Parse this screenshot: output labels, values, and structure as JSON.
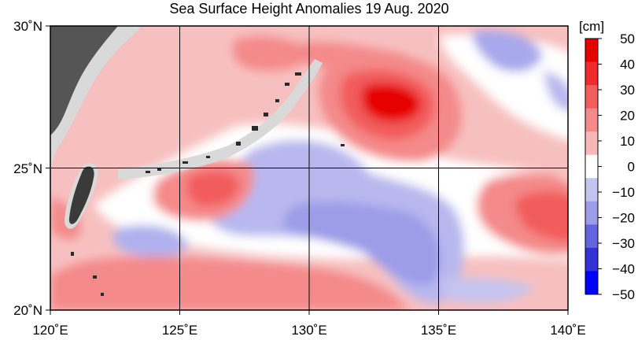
{
  "title": "Sea Surface Height Anomalies  19 Aug. 2020",
  "map": {
    "lon_range": [
      120,
      140
    ],
    "lat_range": [
      20,
      30
    ],
    "x_ticks": [
      "120˚E",
      "125˚E",
      "130˚E",
      "135˚E",
      "140˚E"
    ],
    "y_ticks": [
      "30˚N",
      "25˚N",
      "20˚N"
    ]
  },
  "colorbar": {
    "unit": "[cm]",
    "labels": [
      "50",
      "40",
      "30",
      "20",
      "10",
      "0",
      "−10",
      "−20",
      "−30",
      "−40",
      "−50"
    ],
    "colors": [
      "#e60000",
      "#f02a2a",
      "#f25c5c",
      "#f48a8a",
      "#f8b8b8",
      "#ffffff",
      "#c4c4f0",
      "#9c9ce8",
      "#6464e0",
      "#3232d8",
      "#0000ff"
    ],
    "land_color": "#d9d9d9",
    "island_color": "#2a2a2a"
  }
}
